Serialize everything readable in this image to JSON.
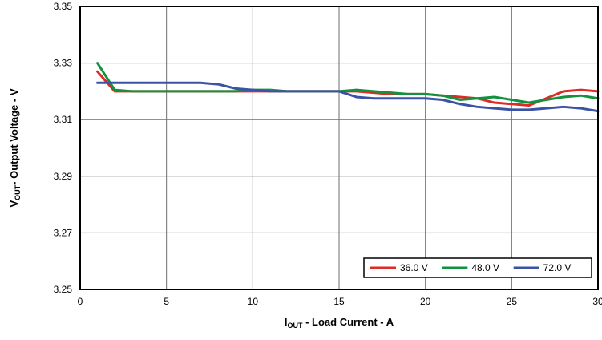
{
  "figure": {
    "background": "#ffffff",
    "border_color": "#000000",
    "grid_color": "#6e6e6e",
    "text_color": "#000000"
  },
  "chart_data": {
    "type": "line",
    "title": "",
    "xlabel": {
      "base": "I",
      "sub": "OUT",
      "rest": " - Load Current - A"
    },
    "ylabel": {
      "base": "V",
      "sub": "OUT",
      "rest": "- Output Voltage - V"
    },
    "xlim": [
      0,
      30
    ],
    "ylim": [
      3.25,
      3.35
    ],
    "xticks": [
      0,
      5,
      10,
      15,
      20,
      25,
      30
    ],
    "yticks": [
      3.25,
      3.27,
      3.29,
      3.31,
      3.33,
      3.35
    ],
    "grid": true,
    "legend_position": "bottom-right",
    "series": [
      {
        "name": "36.0 V",
        "color": "#dd2b25",
        "x": [
          1,
          2,
          3,
          4,
          5,
          6,
          7,
          8,
          9,
          10,
          11,
          12,
          13,
          14,
          15,
          16,
          17,
          18,
          19,
          20,
          21,
          22,
          23,
          24,
          25,
          26,
          27,
          28,
          29,
          30
        ],
        "y": [
          3.327,
          3.32,
          3.32,
          3.32,
          3.32,
          3.32,
          3.32,
          3.32,
          3.32,
          3.32,
          3.32,
          3.32,
          3.32,
          3.32,
          3.32,
          3.32,
          3.3195,
          3.319,
          3.319,
          3.319,
          3.3185,
          3.318,
          3.3175,
          3.316,
          3.3155,
          3.315,
          3.3175,
          3.32,
          3.3205,
          3.32
        ]
      },
      {
        "name": "48.0 V",
        "color": "#12923f",
        "x": [
          1,
          2,
          3,
          4,
          5,
          6,
          7,
          8,
          9,
          10,
          11,
          12,
          13,
          14,
          15,
          16,
          17,
          18,
          19,
          20,
          21,
          22,
          23,
          24,
          25,
          26,
          27,
          28,
          29,
          30
        ],
        "y": [
          3.33,
          3.3205,
          3.32,
          3.32,
          3.32,
          3.32,
          3.32,
          3.32,
          3.32,
          3.3205,
          3.3205,
          3.32,
          3.32,
          3.32,
          3.32,
          3.3205,
          3.32,
          3.3195,
          3.319,
          3.319,
          3.3185,
          3.317,
          3.3175,
          3.318,
          3.317,
          3.316,
          3.317,
          3.318,
          3.3185,
          3.3175
        ]
      },
      {
        "name": "72.0 V",
        "color": "#3b53a5",
        "x": [
          1,
          2,
          3,
          4,
          5,
          6,
          7,
          8,
          9,
          10,
          11,
          12,
          13,
          14,
          15,
          16,
          17,
          18,
          19,
          20,
          21,
          22,
          23,
          24,
          25,
          26,
          27,
          28,
          29,
          30
        ],
        "y": [
          3.323,
          3.323,
          3.323,
          3.323,
          3.323,
          3.323,
          3.323,
          3.3225,
          3.321,
          3.3205,
          3.32,
          3.32,
          3.32,
          3.32,
          3.32,
          3.318,
          3.3175,
          3.3175,
          3.3175,
          3.3175,
          3.317,
          3.3155,
          3.3145,
          3.314,
          3.3135,
          3.3135,
          3.314,
          3.3145,
          3.314,
          3.313
        ]
      }
    ]
  }
}
